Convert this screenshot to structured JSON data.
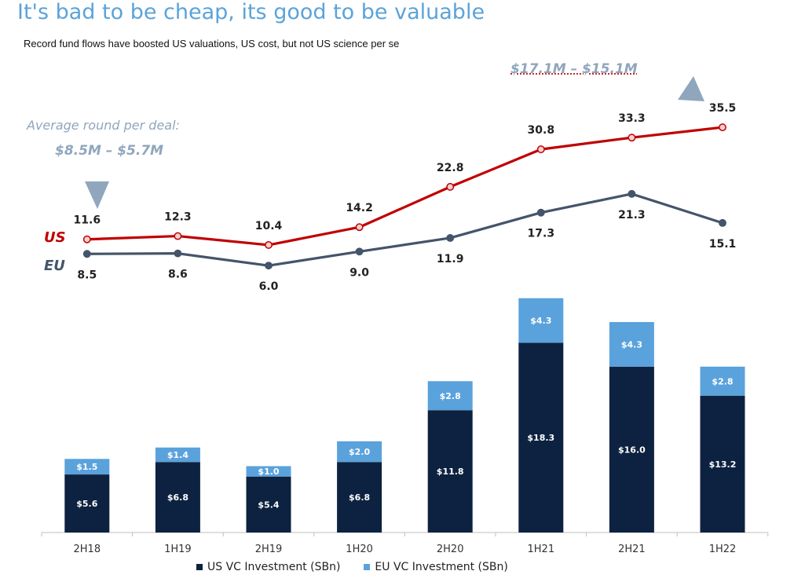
{
  "title": "It's bad to be cheap, its good to be valuable",
  "subtitle": "Record fund flows have boosted US valuations, US cost, but not US science per se",
  "annotations": {
    "top_range": "$17.1M – $15.1M",
    "avg_label": "Average round per deal:",
    "avg_range": "$8.5M – $5.7M"
  },
  "series_tags": {
    "us": "US",
    "eu": "EU"
  },
  "colors": {
    "us_bar": "#0d2240",
    "eu_bar": "#5aa2dc",
    "us_line": "#c00000",
    "eu_line": "#44546a",
    "arrow": "#8fa6bd"
  },
  "chart_data": [
    {
      "type": "line",
      "categories": [
        "2H18",
        "1H19",
        "2H19",
        "1H20",
        "2H20",
        "1H21",
        "2H21",
        "1H22"
      ],
      "series": [
        {
          "name": "US",
          "values": [
            11.6,
            12.3,
            10.4,
            14.2,
            22.8,
            30.8,
            33.3,
            35.5
          ],
          "labels": [
            "11.6",
            "12.3",
            "10.4",
            "14.2",
            "22.8",
            "30.8",
            "33.3",
            "35.5"
          ]
        },
        {
          "name": "EU",
          "values": [
            8.5,
            8.6,
            6.0,
            9.0,
            11.9,
            17.3,
            21.3,
            15.1
          ],
          "labels": [
            "8.5",
            "8.6",
            "6.0",
            "9.0",
            "11.9",
            "17.3",
            "21.3",
            "15.1"
          ]
        }
      ]
    },
    {
      "type": "bar",
      "stacked": true,
      "categories": [
        "2H18",
        "1H19",
        "2H19",
        "1H20",
        "2H20",
        "1H21",
        "2H21",
        "1H22"
      ],
      "series": [
        {
          "name": "US VC Investment (SBn)",
          "values": [
            5.6,
            6.8,
            5.4,
            6.8,
            11.8,
            18.3,
            16.0,
            13.2
          ],
          "labels": [
            "$5.6",
            "$6.8",
            "$5.4",
            "$6.8",
            "$11.8",
            "$18.3",
            "$16.0",
            "$13.2"
          ]
        },
        {
          "name": "EU VC Investment (SBn)",
          "values": [
            1.5,
            1.4,
            1.0,
            2.0,
            2.8,
            4.3,
            4.3,
            2.8
          ],
          "labels": [
            "$1.5",
            "$1.4",
            "$1.0",
            "$2.0",
            "$2.8",
            "$4.3",
            "$4.3",
            "$2.8"
          ]
        }
      ],
      "legend_position": "bottom"
    }
  ]
}
